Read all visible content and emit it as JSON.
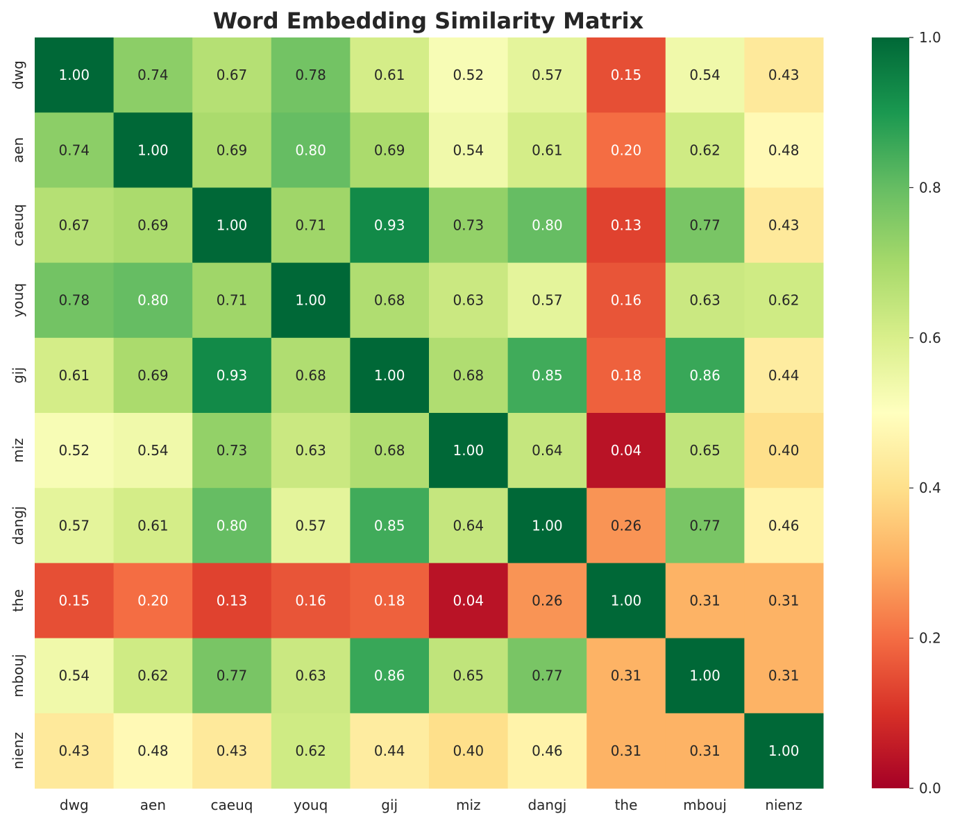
{
  "chart_data": {
    "type": "heatmap",
    "title": "Word Embedding Similarity Matrix",
    "xlabel": "",
    "ylabel": "",
    "x_labels": [
      "dwg",
      "aen",
      "caeuq",
      "youq",
      "gij",
      "miz",
      "dangj",
      "the",
      "mbouj",
      "nienz"
    ],
    "y_labels": [
      "dwg",
      "aen",
      "caeuq",
      "youq",
      "gij",
      "miz",
      "dangj",
      "the",
      "mbouj",
      "nienz"
    ],
    "values": [
      [
        1.0,
        0.74,
        0.67,
        0.78,
        0.61,
        0.52,
        0.57,
        0.15,
        0.54,
        0.43
      ],
      [
        0.74,
        1.0,
        0.69,
        0.8,
        0.69,
        0.54,
        0.61,
        0.2,
        0.62,
        0.48
      ],
      [
        0.67,
        0.69,
        1.0,
        0.71,
        0.93,
        0.73,
        0.8,
        0.13,
        0.77,
        0.43
      ],
      [
        0.78,
        0.8,
        0.71,
        1.0,
        0.68,
        0.63,
        0.57,
        0.16,
        0.63,
        0.62
      ],
      [
        0.61,
        0.69,
        0.93,
        0.68,
        1.0,
        0.68,
        0.85,
        0.18,
        0.86,
        0.44
      ],
      [
        0.52,
        0.54,
        0.73,
        0.63,
        0.68,
        1.0,
        0.64,
        0.04,
        0.65,
        0.4
      ],
      [
        0.57,
        0.61,
        0.8,
        0.57,
        0.85,
        0.64,
        1.0,
        0.26,
        0.77,
        0.46
      ],
      [
        0.15,
        0.2,
        0.13,
        0.16,
        0.18,
        0.04,
        0.26,
        1.0,
        0.31,
        0.31
      ],
      [
        0.54,
        0.62,
        0.77,
        0.63,
        0.86,
        0.65,
        0.77,
        0.31,
        1.0,
        0.31
      ],
      [
        0.43,
        0.48,
        0.43,
        0.62,
        0.44,
        0.4,
        0.46,
        0.31,
        0.31,
        1.0
      ]
    ],
    "value_format": "2 decimals",
    "colormap": "RdYlGn",
    "vmin": 0.0,
    "vmax": 1.0,
    "colorbar": {
      "ticks": [
        "0.0",
        "0.2",
        "0.4",
        "0.6",
        "0.8",
        "1.0"
      ],
      "tick_values": [
        0.0,
        0.2,
        0.4,
        0.6,
        0.8,
        1.0
      ]
    },
    "grid": false,
    "legend": "colorbar-right"
  },
  "colors": {
    "text_dark": "#262626",
    "text_light": "#ffffff",
    "background": "#ffffff",
    "colormap_stops": [
      "#a50026",
      "#d73027",
      "#f46d43",
      "#fdae61",
      "#fee08b",
      "#ffffbf",
      "#d9ef8b",
      "#a6d96a",
      "#66bd63",
      "#1a9850",
      "#006837"
    ]
  }
}
